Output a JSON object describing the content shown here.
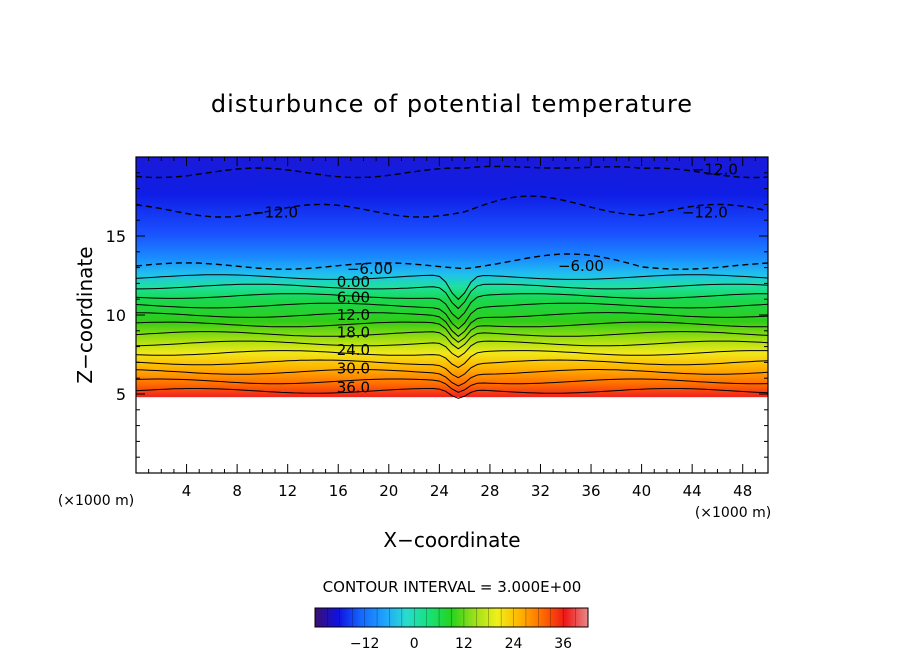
{
  "chart_data": {
    "type": "contour",
    "title": "disturbunce of potential temperature",
    "xlabel": "X−coordinate",
    "ylabel": "Z−coordinate",
    "x_unit": "(×1000 m)",
    "x_unit_right": "(×1000 m)",
    "xlim": [
      0,
      50
    ],
    "ylim": [
      0,
      20
    ],
    "x_ticks": [
      4,
      8,
      12,
      16,
      20,
      24,
      28,
      32,
      36,
      40,
      44,
      48
    ],
    "y_ticks": [
      5,
      10,
      15
    ],
    "contour_interval_label": "CONTOUR INTERVAL =  3.000E+00",
    "colorbar": {
      "range": [
        -24,
        42
      ],
      "ticks": [
        -12,
        0,
        12,
        24,
        36
      ],
      "colors": [
        "#3b1070",
        "#1010e0",
        "#1565ff",
        "#1ea0ff",
        "#28dcd0",
        "#16e27a",
        "#26d21e",
        "#9ae01a",
        "#f0f01a",
        "#ffb400",
        "#ff6a00",
        "#f01818",
        "#e88888"
      ]
    },
    "terrain_top_km": 4.8,
    "contour_labels": [
      {
        "text": "−12.0",
        "x": 45.8,
        "y": 19.2
      },
      {
        "text": "−12.0",
        "x": 11.0,
        "y": 16.5
      },
      {
        "text": "−12.0",
        "x": 45.0,
        "y": 16.5
      },
      {
        "text": "−6.00",
        "x": 18.5,
        "y": 12.9
      },
      {
        "text": "−6.00",
        "x": 35.2,
        "y": 13.1
      },
      {
        "text": "0.00",
        "x": 17.2,
        "y": 12.1
      },
      {
        "text": "6.00",
        "x": 17.2,
        "y": 11.1
      },
      {
        "text": "12.0",
        "x": 17.2,
        "y": 10.0
      },
      {
        "text": "18.0",
        "x": 17.2,
        "y": 8.9
      },
      {
        "text": "24.0",
        "x": 17.2,
        "y": 7.8
      },
      {
        "text": "30.0",
        "x": 17.2,
        "y": 6.6
      },
      {
        "text": "36.0",
        "x": 17.2,
        "y": 5.4
      }
    ]
  }
}
